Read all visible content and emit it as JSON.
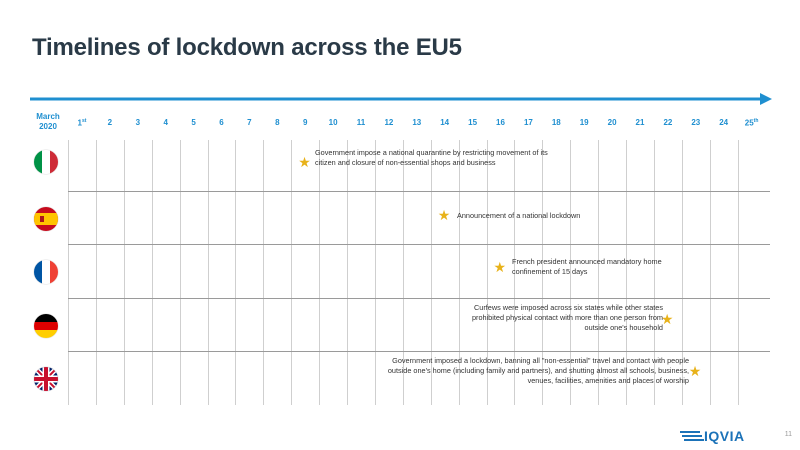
{
  "title": "Timelines of lockdown across the EU5",
  "month_label": "March 2020",
  "days": [
    "1st",
    "2",
    "3",
    "4",
    "5",
    "6",
    "7",
    "8",
    "9",
    "10",
    "11",
    "12",
    "13",
    "14",
    "15",
    "16",
    "17",
    "18",
    "19",
    "20",
    "21",
    "22",
    "23",
    "24",
    "25th"
  ],
  "countries": [
    {
      "flag_icon": "italy-flag-icon",
      "event_day": 9,
      "note": "Government impose a national quarantine by restricting movement of its citizen and closure of non-essential shops and business"
    },
    {
      "flag_icon": "spain-flag-icon",
      "event_day": 14,
      "note": "Announcement of a national lockdown"
    },
    {
      "flag_icon": "france-flag-icon",
      "event_day": 16,
      "note": "French president announced mandatory home confinement of 15 days"
    },
    {
      "flag_icon": "germany-flag-icon",
      "event_day": 22,
      "note": "Curfews were imposed across six states while other states prohibited physical contact with more than one person from outside one's household"
    },
    {
      "flag_icon": "uk-flag-icon",
      "event_day": 23,
      "note": "Government imposed a lockdown, banning all \"non-essential\" travel and contact with people outside one's home (including family and partners), and shutting almost all schools, business, venues, facilities, amenities and places of worship"
    }
  ],
  "logo": "IQVIA",
  "page_number": "11",
  "colors": {
    "accent": "#1f8fd0",
    "star": "#e8b21a",
    "title": "#2a3a47",
    "logo": "#1b72b8"
  }
}
